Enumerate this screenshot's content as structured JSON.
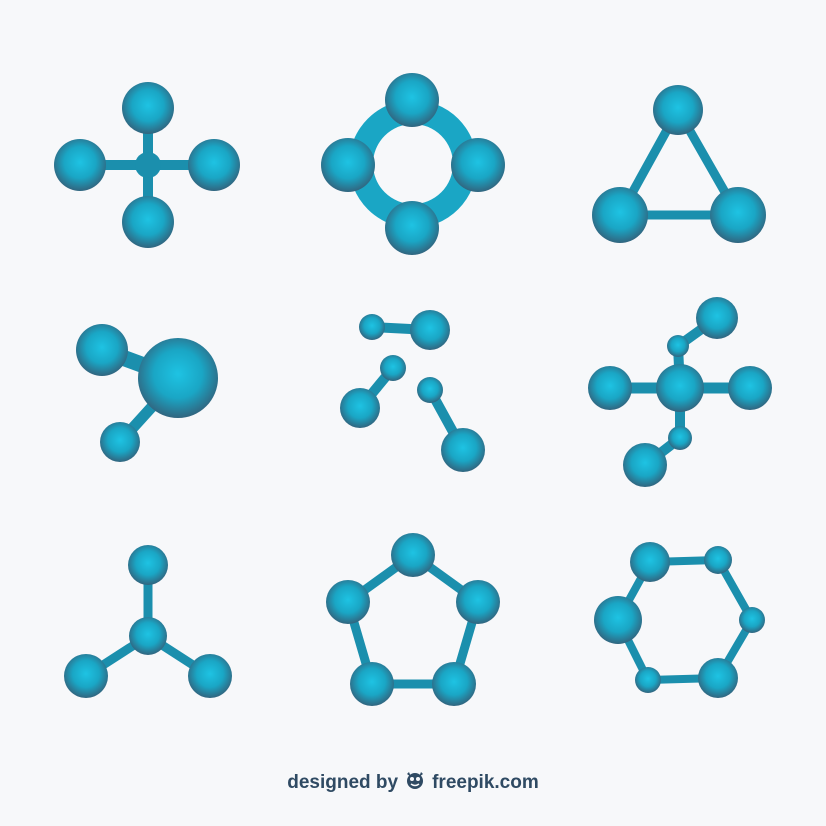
{
  "palette": {
    "bond": "#1b8fad",
    "atom_light": "#1ec0e0",
    "atom_mid": "#1aa7c6",
    "atom_dark": "#2f6c86",
    "background": "#f7f8fa",
    "credit_text": "#2f4a63"
  },
  "molecules": [
    {
      "name": "molecule-cross"
    },
    {
      "name": "molecule-ring-four"
    },
    {
      "name": "molecule-triangle"
    },
    {
      "name": "molecule-three-atom"
    },
    {
      "name": "molecule-separated-pairs"
    },
    {
      "name": "molecule-star-branched"
    },
    {
      "name": "molecule-tripod"
    },
    {
      "name": "molecule-pentagon"
    },
    {
      "name": "molecule-hexagon"
    }
  ],
  "credit": {
    "prefix": "designed by",
    "brand": "freepik.com",
    "icon": "freepik-logo-icon"
  }
}
